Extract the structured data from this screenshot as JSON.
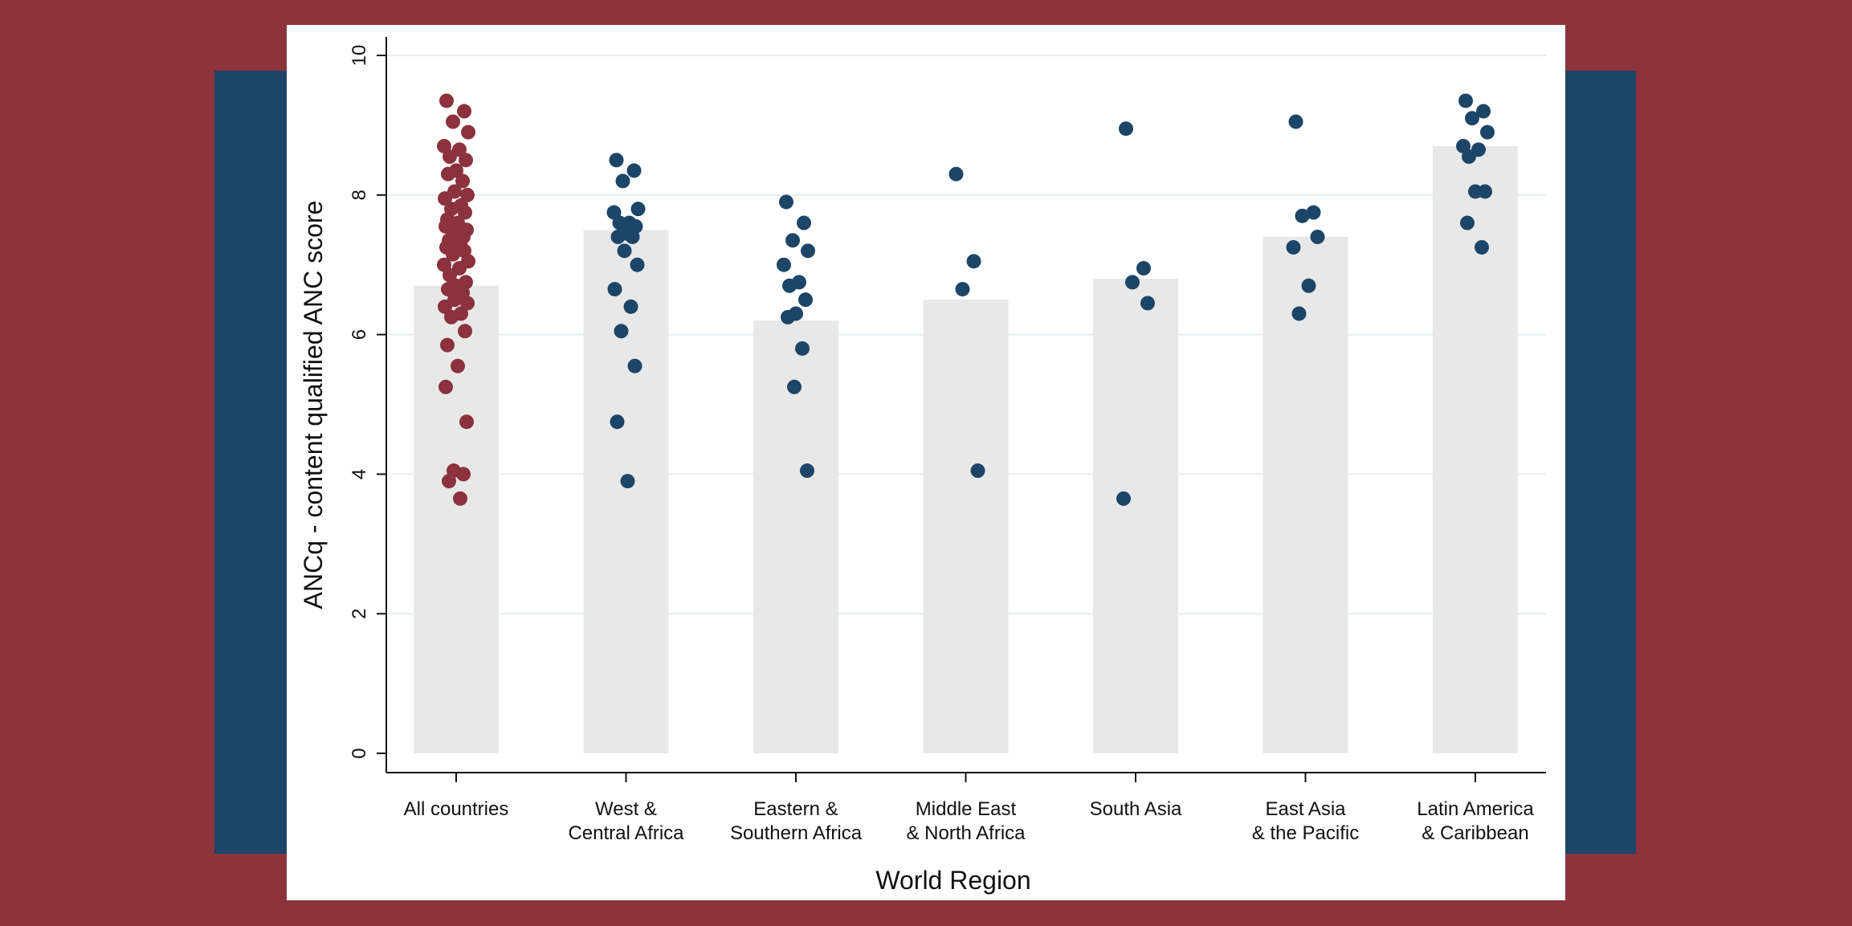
{
  "chart_data": {
    "type": "bar",
    "xlabel": "World Region",
    "ylabel": "ANCq - content qualified ANC score",
    "ylim": [
      0,
      10
    ],
    "yticks": [
      0,
      2,
      4,
      6,
      8,
      10
    ],
    "grid": true,
    "categories": [
      [
        "All countries"
      ],
      [
        "West &",
        "Central Africa"
      ],
      [
        "Eastern &",
        "Southern Africa"
      ],
      [
        "Middle East",
        "& North Africa"
      ],
      [
        "South Asia"
      ],
      [
        "East Asia",
        "& the Pacific"
      ],
      [
        "Latin America",
        "& Caribbean"
      ]
    ],
    "bar_values": [
      6.7,
      7.5,
      6.2,
      6.5,
      6.8,
      7.4,
      8.7
    ],
    "colors": {
      "bar": "#e8e8e8",
      "all_countries_points": "#8b323d",
      "region_points": "#1c4568",
      "grid": "#e6eef2"
    },
    "points": [
      [
        9.35,
        9.2,
        9.05,
        8.9,
        8.7,
        8.65,
        8.55,
        8.5,
        8.35,
        8.3,
        8.2,
        8.05,
        8.0,
        7.95,
        7.85,
        7.8,
        7.75,
        7.65,
        7.6,
        7.55,
        7.5,
        7.45,
        7.4,
        7.35,
        7.3,
        7.25,
        7.2,
        7.15,
        7.05,
        7.0,
        6.95,
        6.85,
        6.75,
        6.7,
        6.65,
        6.6,
        6.5,
        6.45,
        6.4,
        6.3,
        6.25,
        6.05,
        5.85,
        5.55,
        5.25,
        4.75,
        4.05,
        4.0,
        3.9,
        3.65
      ],
      [
        8.5,
        8.35,
        8.2,
        7.8,
        7.75,
        7.6,
        7.6,
        7.55,
        7.45,
        7.4,
        7.4,
        7.2,
        7.0,
        6.65,
        6.4,
        6.05,
        5.55,
        4.75,
        3.9
      ],
      [
        7.9,
        7.6,
        7.35,
        7.2,
        7.0,
        6.75,
        6.7,
        6.5,
        6.3,
        6.25,
        5.8,
        5.25,
        4.05
      ],
      [
        8.3,
        7.05,
        6.65,
        4.05
      ],
      [
        8.95,
        6.95,
        6.75,
        6.45,
        3.65
      ],
      [
        9.05,
        7.75,
        7.7,
        7.4,
        7.25,
        6.7,
        6.3
      ],
      [
        9.35,
        9.2,
        9.1,
        8.9,
        8.7,
        8.65,
        8.55,
        8.05,
        8.05,
        7.6,
        7.25
      ]
    ]
  }
}
